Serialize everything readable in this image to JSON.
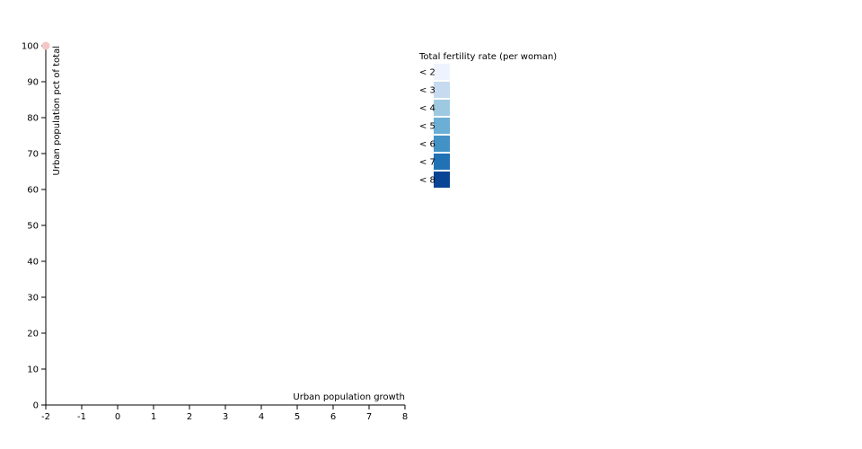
{
  "chart_data": {
    "type": "scatter",
    "xlabel": "Urban population growth",
    "ylabel": "Urban population pct of total",
    "xlim": [
      -2,
      8
    ],
    "ylim": [
      0,
      100
    ],
    "x_ticks": [
      -2,
      -1,
      0,
      1,
      2,
      3,
      4,
      5,
      6,
      7,
      8
    ],
    "x_tick_labels": [
      "-2",
      "-1",
      "0",
      "1",
      "2",
      "3",
      "4",
      "5",
      "6",
      "7",
      "8"
    ],
    "y_ticks": [
      0,
      10,
      20,
      30,
      40,
      50,
      60,
      70,
      80,
      90,
      100
    ],
    "y_tick_labels": [
      "0",
      "10",
      "20",
      "30",
      "40",
      "50",
      "60",
      "70",
      "80",
      "90",
      "100"
    ],
    "points": [
      {
        "x": -2,
        "y": 100,
        "color": "#f4c7c7"
      }
    ],
    "legend": {
      "title": "Total fertility rate (per woman)",
      "placement": "top-right",
      "items": [
        {
          "label": "< 2",
          "color": "#eff3ff"
        },
        {
          "label": "< 3",
          "color": "#c6dbef"
        },
        {
          "label": "< 4",
          "color": "#9ecae1"
        },
        {
          "label": "< 5",
          "color": "#6baed6"
        },
        {
          "label": "< 6",
          "color": "#4292c6"
        },
        {
          "label": "< 7",
          "color": "#2171b5"
        },
        {
          "label": "< 8",
          "color": "#084594"
        }
      ]
    },
    "grid": false
  }
}
